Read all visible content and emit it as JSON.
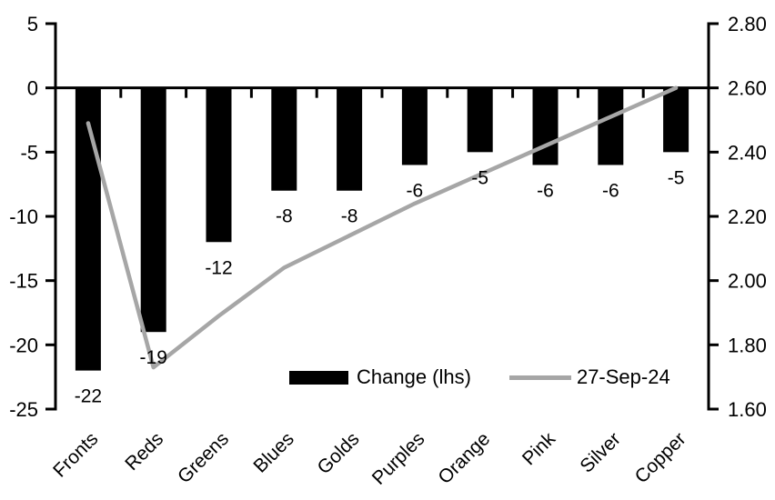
{
  "chart_data": {
    "type": "bar",
    "title": "",
    "categories": [
      "Fronts",
      "Reds",
      "Greens",
      "Blues",
      "Golds",
      "Purples",
      "Orange",
      "Pink",
      "Silver",
      "Copper"
    ],
    "series": [
      {
        "name": "Change (lhs)",
        "type": "bar",
        "axis": "left",
        "color": "#000000",
        "values": [
          -22,
          -19,
          -12,
          -8,
          -8,
          -6,
          -5,
          -6,
          -6,
          -5
        ]
      },
      {
        "name": "27-Sep-24",
        "type": "line",
        "axis": "right",
        "color": "#A6A6A6",
        "values": [
          2.49,
          1.73,
          1.89,
          2.04,
          2.14,
          2.24,
          2.33,
          2.42,
          2.51,
          2.6
        ]
      }
    ],
    "left_axis": {
      "min": -25,
      "max": 5,
      "tick_step": 5,
      "tick_labels": [
        "5",
        "0",
        "-5",
        "-10",
        "-15",
        "-20",
        "-25"
      ]
    },
    "right_axis": {
      "min": 1.6,
      "max": 2.8,
      "tick_step": 0.2,
      "tick_labels": [
        "2.80",
        "2.60",
        "2.40",
        "2.20",
        "2.00",
        "1.80",
        "1.60"
      ]
    },
    "grid": false,
    "legend_position": "inside-bottom-center",
    "bar_labels_shown": true
  },
  "colors": {
    "bar": "#000000",
    "line": "#A6A6A6",
    "axis": "#000000",
    "text": "#000000",
    "background": "#FFFFFF"
  }
}
